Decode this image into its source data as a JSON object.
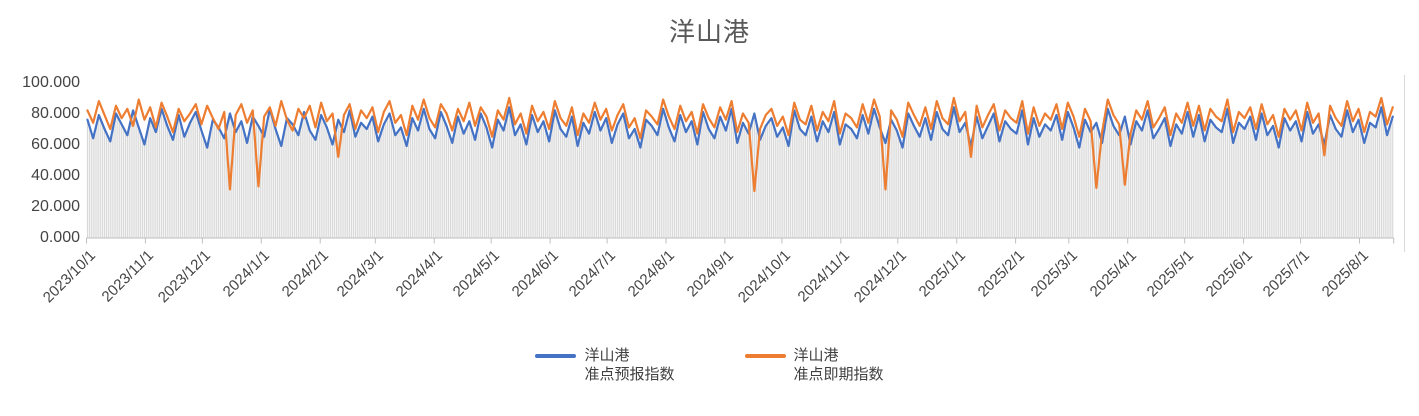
{
  "title": "洋山港",
  "colors": {
    "forecast_line": "#4472C4",
    "spot_line": "#ED7D31",
    "daily_columns": "#D9D9D9",
    "axis_line": "#BFBFBF",
    "plot_right_border": "#D9D9D9",
    "title_text": "#595959",
    "axis_text": "#444444"
  },
  "legend": [
    {
      "line1": "洋山港",
      "line2": "准点预报指数",
      "color": "#4472C4"
    },
    {
      "line1": "洋山港",
      "line2": "准点即期指数",
      "color": "#ED7D31"
    }
  ],
  "chart_data": {
    "type": "line",
    "title": "洋山港",
    "xlabel": "",
    "ylabel": "",
    "ylim": [
      0,
      100
    ],
    "grid": false,
    "legend_position": "bottom",
    "x_start": "2023/10/1",
    "sample_interval_days": 3,
    "x_tick_labels": [
      "2023/10/1",
      "2023/11/1",
      "2023/12/1",
      "2024/1/1",
      "2024/2/1",
      "2024/3/1",
      "2024/4/1",
      "2024/5/1",
      "2024/6/1",
      "2024/7/1",
      "2024/8/1",
      "2024/9/1",
      "2024/10/1",
      "2024/11/1",
      "2024/12/1",
      "2025/1/1",
      "2025/2/1",
      "2025/3/1",
      "2025/4/1",
      "2025/5/1",
      "2025/6/1",
      "2025/7/1",
      "2025/8/1"
    ],
    "y_tick_labels": [
      "0.000",
      "20.000",
      "40.000",
      "60.000",
      "80.000",
      "100.000"
    ],
    "columns": {
      "description": "light-gray daily columns drawn from 0 up to the 准点预报指数 value",
      "color": "#D9D9D9",
      "values_from_series": "洋山港准点预报指数"
    },
    "series": [
      {
        "name": "洋山港准点预报指数",
        "color": "#4472C4",
        "values": [
          76,
          64,
          79,
          70,
          62,
          80,
          73,
          66,
          82,
          71,
          60,
          77,
          68,
          83,
          72,
          63,
          79,
          65,
          74,
          81,
          69,
          58,
          76,
          71,
          64,
          80,
          68,
          75,
          61,
          78,
          72,
          65,
          83,
          70,
          59,
          77,
          73,
          66,
          81,
          69,
          63,
          79,
          71,
          60,
          76,
          68,
          82,
          65,
          74,
          70,
          78,
          62,
          73,
          80,
          66,
          71,
          59,
          77,
          69,
          83,
          70,
          64,
          81,
          72,
          61,
          78,
          67,
          75,
          63,
          80,
          71,
          58,
          76,
          69,
          84,
          66,
          73,
          60,
          79,
          68,
          75,
          62,
          82,
          70,
          65,
          78,
          59,
          74,
          67,
          81,
          69,
          77,
          61,
          73,
          80,
          64,
          70,
          58,
          76,
          72,
          66,
          83,
          71,
          62,
          79,
          68,
          75,
          60,
          81,
          70,
          64,
          78,
          69,
          83,
          61,
          74,
          67,
          80,
          63,
          72,
          77,
          65,
          71,
          59,
          82,
          70,
          66,
          78,
          62,
          75,
          68,
          81,
          60,
          73,
          70,
          64,
          79,
          67,
          83,
          71,
          61,
          76,
          69,
          58,
          80,
          72,
          65,
          77,
          63,
          81,
          70,
          66,
          84,
          68,
          74,
          59,
          78,
          64,
          72,
          80,
          62,
          75,
          70,
          67,
          82,
          60,
          77,
          65,
          73,
          69,
          79,
          63,
          81,
          71,
          58,
          76,
          68,
          74,
          61,
          83,
          72,
          66,
          78,
          60,
          75,
          69,
          82,
          64,
          70,
          77,
          59,
          73,
          67,
          81,
          65,
          79,
          62,
          76,
          71,
          68,
          83,
          61,
          74,
          70,
          78,
          63,
          80,
          66,
          72,
          58,
          77,
          69,
          75,
          62,
          81,
          67,
          73,
          60,
          79,
          70,
          65,
          82,
          68,
          76,
          61,
          74,
          71,
          84,
          66,
          78
        ]
      },
      {
        "name": "洋山港准点即期指数",
        "color": "#ED7D31",
        "values": [
          82,
          74,
          88,
          79,
          70,
          85,
          77,
          83,
          72,
          89,
          76,
          84,
          71,
          87,
          78,
          68,
          83,
          75,
          80,
          86,
          73,
          85,
          77,
          70,
          81,
          31,
          79,
          86,
          74,
          82,
          33,
          78,
          84,
          72,
          88,
          76,
          69,
          83,
          77,
          85,
          71,
          87,
          75,
          80,
          52,
          79,
          86,
          70,
          82,
          77,
          84,
          68,
          81,
          88,
          74,
          79,
          66,
          85,
          76,
          89,
          77,
          71,
          86,
          80,
          69,
          83,
          75,
          87,
          72,
          84,
          78,
          65,
          82,
          76,
          90,
          73,
          80,
          67,
          85,
          75,
          81,
          70,
          88,
          77,
          72,
          84,
          66,
          80,
          74,
          87,
          76,
          83,
          69,
          79,
          86,
          71,
          77,
          64,
          82,
          78,
          73,
          89,
          78,
          70,
          85,
          75,
          81,
          67,
          86,
          77,
          71,
          84,
          76,
          88,
          68,
          80,
          74,
          30,
          70,
          79,
          83,
          72,
          78,
          66,
          87,
          76,
          73,
          85,
          69,
          81,
          75,
          88,
          67,
          80,
          77,
          71,
          86,
          74,
          89,
          78,
          31,
          82,
          76,
          65,
          87,
          79,
          72,
          84,
          70,
          88,
          77,
          73,
          90,
          75,
          81,
          52,
          85,
          71,
          79,
          86,
          69,
          82,
          77,
          74,
          88,
          67,
          84,
          72,
          80,
          76,
          86,
          70,
          87,
          78,
          65,
          83,
          75,
          32,
          68,
          89,
          79,
          73,
          34,
          67,
          82,
          76,
          88,
          71,
          77,
          84,
          66,
          80,
          74,
          87,
          72,
          85,
          69,
          83,
          78,
          75,
          89,
          68,
          81,
          77,
          84,
          70,
          86,
          73,
          79,
          65,
          83,
          76,
          82,
          69,
          87,
          74,
          80,
          53,
          85,
          77,
          72,
          88,
          75,
          83,
          68,
          81,
          78,
          90,
          73,
          84
        ]
      }
    ]
  }
}
